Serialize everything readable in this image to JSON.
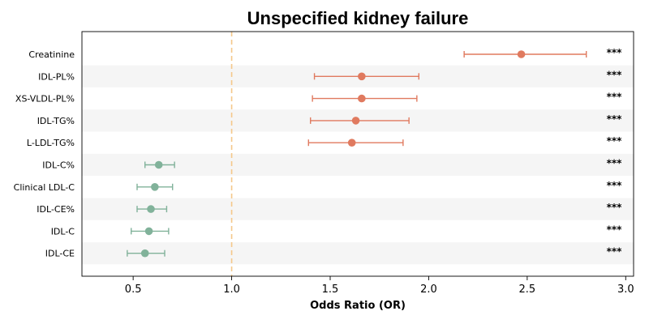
{
  "chart_data": {
    "type": "forest",
    "title": "Unspecified kidney failure",
    "xlabel": "Odds Ratio (OR)",
    "xlim": [
      0.24,
      3.04
    ],
    "xticks": [
      "0.5",
      "1.0",
      "1.5",
      "2.0",
      "2.5",
      "3.0"
    ],
    "reference_line": 1.0,
    "reference_color": "#f5c88a",
    "grid": false,
    "row_shading": "alternating",
    "shade_color": "#f5f5f5",
    "colors": {
      "increased": "#e07a5f",
      "decreased": "#81b29a"
    },
    "rows": [
      {
        "label": "Creatinine",
        "or": 2.47,
        "lo": 2.18,
        "hi": 2.8,
        "sig": "***",
        "direction": "increased"
      },
      {
        "label": "IDL-PL%",
        "or": 1.66,
        "lo": 1.42,
        "hi": 1.95,
        "sig": "***",
        "direction": "increased"
      },
      {
        "label": "XS-VLDL-PL%",
        "or": 1.66,
        "lo": 1.41,
        "hi": 1.94,
        "sig": "***",
        "direction": "increased"
      },
      {
        "label": "IDL-TG%",
        "or": 1.63,
        "lo": 1.4,
        "hi": 1.9,
        "sig": "***",
        "direction": "increased"
      },
      {
        "label": "L-LDL-TG%",
        "or": 1.61,
        "lo": 1.39,
        "hi": 1.87,
        "sig": "***",
        "direction": "increased"
      },
      {
        "label": "IDL-C%",
        "or": 0.63,
        "lo": 0.56,
        "hi": 0.71,
        "sig": "***",
        "direction": "decreased"
      },
      {
        "label": "Clinical LDL-C",
        "or": 0.61,
        "lo": 0.52,
        "hi": 0.7,
        "sig": "***",
        "direction": "decreased"
      },
      {
        "label": "IDL-CE%",
        "or": 0.59,
        "lo": 0.52,
        "hi": 0.67,
        "sig": "***",
        "direction": "decreased"
      },
      {
        "label": "IDL-C",
        "or": 0.58,
        "lo": 0.49,
        "hi": 0.68,
        "sig": "***",
        "direction": "decreased"
      },
      {
        "label": "IDL-CE",
        "or": 0.56,
        "lo": 0.47,
        "hi": 0.66,
        "sig": "***",
        "direction": "decreased"
      }
    ]
  }
}
